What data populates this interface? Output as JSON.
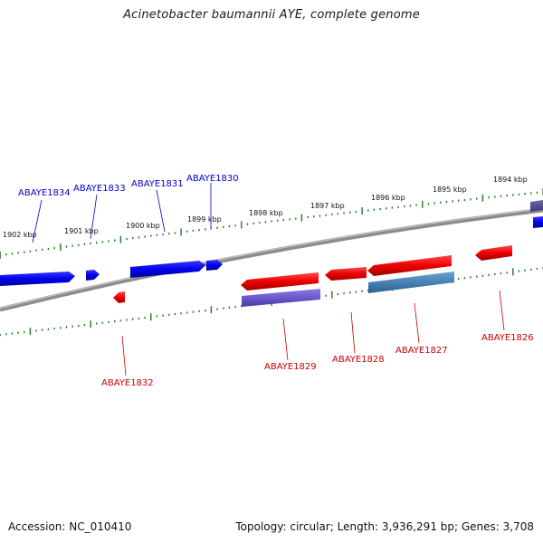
{
  "title": "Acinetobacter baumannii AYE, complete genome",
  "footer": {
    "accession": "Accession: NC_010410",
    "info": "Topology: circular; Length: 3,936,291 bp; Genes: 3,708"
  },
  "colors": {
    "forward_gene": "#0000ee",
    "reverse_gene": "#ee0000",
    "cds_purple": "#6a5acd",
    "cds_steelblue": "#4682b4",
    "backbone": "#888888",
    "ticks": "#1f7a1f"
  },
  "kbp_labels": [
    "1902 kbp",
    "1901 kbp",
    "1900 kbp",
    "1899 kbp",
    "1898 kbp",
    "1897 kbp",
    "1896 kbp",
    "1895 kbp",
    "1894 kbp"
  ],
  "genes_forward": [
    "ABAYE1834",
    "ABAYE1833",
    "ABAYE1831",
    "ABAYE1830"
  ],
  "genes_reverse": [
    "ABAYE1832",
    "ABAYE1829",
    "ABAYE1828",
    "ABAYE1827",
    "ABAYE1826"
  ]
}
